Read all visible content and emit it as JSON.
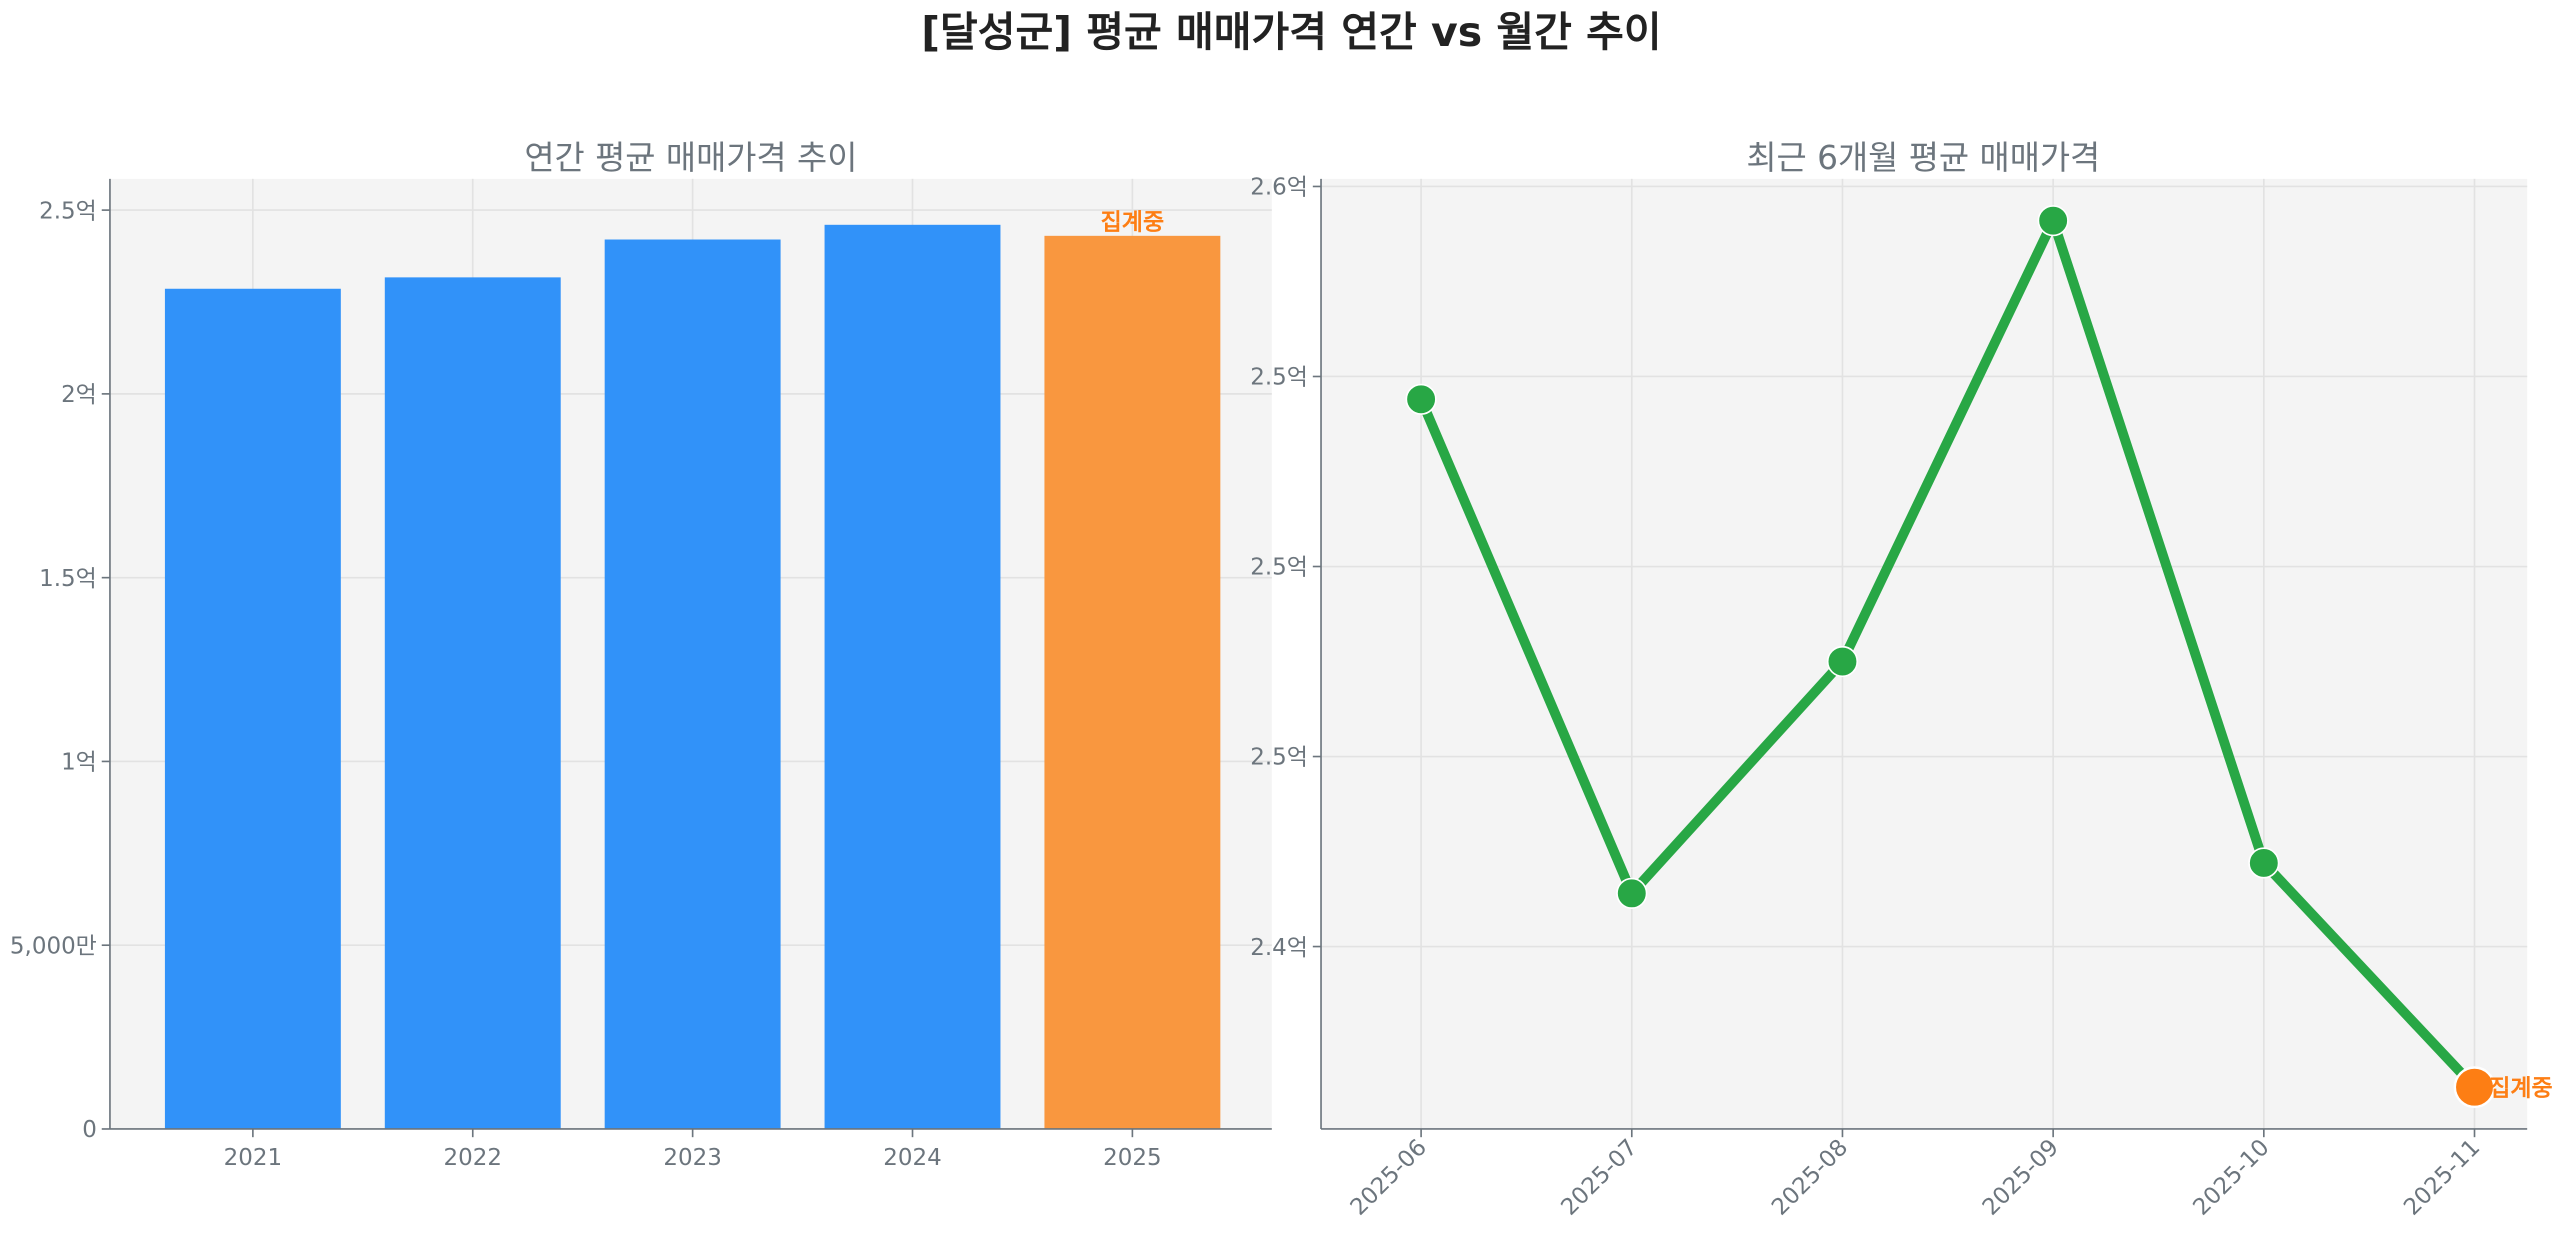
{
  "title": "[달성군] 평균 매매가격 연간 vs 월간 추이",
  "colors": {
    "bar": "#3192f9",
    "bar_partial": "#f9973f",
    "line": "#28a745",
    "point_partial": "#fd7e14",
    "annotation": "#fd7e14",
    "axes_bg": "#f4f4f4"
  },
  "chart_data": [
    {
      "type": "bar",
      "title": "연간 평균 매매가격 추이",
      "categories": [
        "2021",
        "2022",
        "2023",
        "2024",
        "2025"
      ],
      "values": [
        228600000,
        231700000,
        242000000,
        246000000,
        243000000
      ],
      "ylim": [
        0,
        258500000
      ],
      "yticks": [
        0,
        50000000,
        100000000,
        150000000,
        200000000,
        250000000
      ],
      "ytick_labels": [
        "0",
        "5,000만",
        "1억",
        "1.5억",
        "2억",
        "2.5억"
      ],
      "grid": true,
      "annotation": {
        "category": "2025",
        "text": "집계중"
      }
    },
    {
      "type": "line",
      "title": "최근 6개월 평균 매매가격",
      "categories": [
        "2025-06",
        "2025-07",
        "2025-08",
        "2025-09",
        "2025-10",
        "2025-11"
      ],
      "values": [
        254400000,
        241400000,
        247500000,
        259100000,
        242200000,
        236300000
      ],
      "ylim": [
        235200000,
        260200000
      ],
      "yticks": [
        240000000,
        245000000,
        250000000,
        255000000,
        260000000
      ],
      "ytick_labels": [
        "2.4억",
        "2.5억",
        "2.5억",
        "2.5억",
        "2.6억"
      ],
      "grid": true,
      "annotation": {
        "category": "2025-11",
        "text": "집계중"
      }
    }
  ]
}
